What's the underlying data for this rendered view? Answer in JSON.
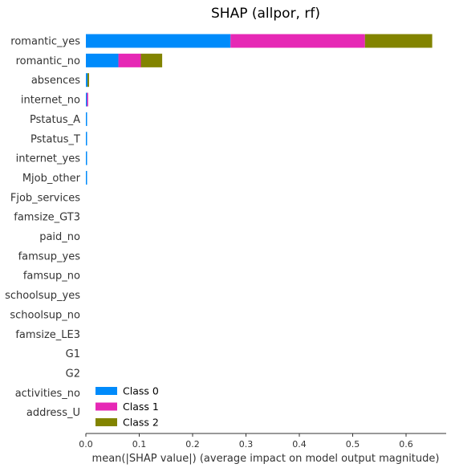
{
  "chart_data": {
    "type": "bar",
    "orientation": "horizontal",
    "stacked": true,
    "title": "SHAP (allpor, rf)",
    "xlabel": "mean(|SHAP value|) (average impact on model output magnitude)",
    "ylabel": "",
    "xlim": [
      0,
      0.68
    ],
    "xticks": [
      "0.0",
      "0.1",
      "0.2",
      "0.3",
      "0.4",
      "0.5",
      "0.6"
    ],
    "grid": false,
    "legend_position": "lower-left",
    "categories": [
      "romantic_yes",
      "romantic_no",
      "absences",
      "internet_no",
      "Pstatus_A",
      "Pstatus_T",
      "internet_yes",
      "Mjob_other",
      "Fjob_services",
      "famsize_GT3",
      "paid_no",
      "famsup_yes",
      "famsup_no",
      "schoolsup_yes",
      "schoolsup_no",
      "famsize_LE3",
      "G1",
      "G2",
      "activities_no",
      "address_U"
    ],
    "series": [
      {
        "name": "Class 0",
        "color": "#008bfb",
        "values": [
          0.271,
          0.061,
          0.003,
          0.002,
          0.002,
          0.002,
          0.002,
          0.001,
          0.0,
          0.0,
          0.0,
          0.0,
          0.0,
          0.0,
          0.0,
          0.0,
          0.0,
          0.0,
          0.0,
          0.0
        ]
      },
      {
        "name": "Class 1",
        "color": "#e628b5",
        "values": [
          0.252,
          0.042,
          0.0,
          0.002,
          0.0,
          0.0,
          0.0,
          0.0,
          0.0,
          0.0,
          0.0,
          0.0,
          0.0,
          0.0,
          0.0,
          0.0,
          0.0,
          0.0,
          0.0,
          0.0
        ]
      },
      {
        "name": "Class 2",
        "color": "#828400",
        "values": [
          0.126,
          0.04,
          0.003,
          0.0,
          0.0,
          0.0,
          0.0,
          0.0,
          0.0,
          0.0,
          0.0,
          0.0,
          0.0,
          0.0,
          0.0,
          0.0,
          0.0,
          0.0,
          0.0,
          0.0
        ]
      }
    ]
  }
}
